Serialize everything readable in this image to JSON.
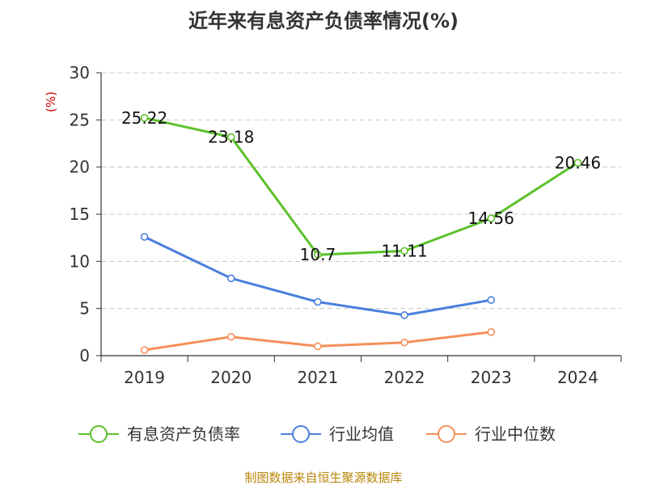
{
  "chart_data": {
    "type": "line",
    "title": "近年来有息资产负债率情况(%)",
    "unit_label": "(%)",
    "categories": [
      "2019",
      "2020",
      "2021",
      "2022",
      "2023",
      "2024"
    ],
    "ylim": [
      0,
      30
    ],
    "yticks": [
      0,
      5,
      10,
      15,
      20,
      25,
      30
    ],
    "grid": true,
    "legend_position": "bottom",
    "series": [
      {
        "name": "有息资产负债率",
        "color": "#5cc12b",
        "values": [
          25.22,
          23.18,
          10.7,
          11.11,
          14.56,
          20.46
        ],
        "labels": [
          "25.22",
          "23.18",
          "10.7",
          "11.11",
          "14.56",
          "20.46"
        ]
      },
      {
        "name": "行业均值",
        "color": "#4a7fdc",
        "values": [
          12.6,
          8.2,
          5.7,
          4.3,
          5.9,
          null
        ]
      },
      {
        "name": "行业中位数",
        "color": "#f5905a",
        "values": [
          0.6,
          2.0,
          1.0,
          1.4,
          2.5,
          null
        ]
      }
    ],
    "source": "制图数据来自恒生聚源数据库"
  }
}
